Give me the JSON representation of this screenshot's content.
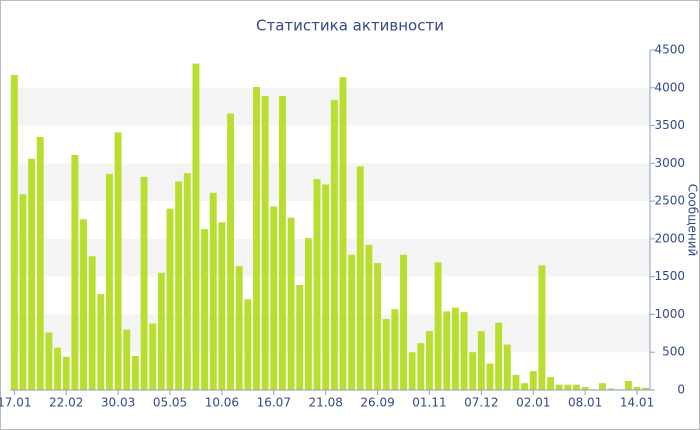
{
  "chart_data": {
    "type": "bar",
    "title": "Статистика активности",
    "y_label": "Сообщений",
    "categories": [
      "17.01",
      null,
      null,
      null,
      null,
      null,
      "22.02",
      null,
      null,
      null,
      null,
      null,
      "30.03",
      null,
      null,
      null,
      null,
      null,
      "05.05",
      null,
      null,
      null,
      null,
      null,
      "10.06",
      null,
      null,
      null,
      null,
      null,
      "16.07",
      null,
      null,
      null,
      null,
      null,
      "21.08",
      null,
      null,
      null,
      null,
      null,
      "26.09",
      null,
      null,
      null,
      null,
      null,
      "01.11",
      null,
      null,
      null,
      null,
      null,
      "07.12",
      null,
      null,
      null,
      null,
      null,
      "02.01",
      null,
      null,
      null,
      null,
      null,
      "08.01",
      null,
      null,
      null,
      null,
      null,
      "14.01",
      null
    ],
    "values": [
      4170,
      2590,
      3060,
      3350,
      760,
      560,
      440,
      3110,
      2260,
      1770,
      1270,
      2860,
      3410,
      800,
      450,
      2820,
      880,
      1550,
      2400,
      2760,
      2870,
      4320,
      2130,
      2610,
      2220,
      3660,
      1640,
      1200,
      4010,
      3890,
      2430,
      3890,
      2280,
      1390,
      2010,
      2790,
      2720,
      3840,
      4140,
      1790,
      2960,
      1920,
      1680,
      940,
      1070,
      1790,
      500,
      620,
      780,
      1690,
      1040,
      1090,
      1030,
      500,
      780,
      350,
      890,
      600,
      200,
      90,
      250,
      1650,
      170,
      70,
      70,
      70,
      40,
      10,
      90,
      20,
      10,
      120,
      40,
      30
    ],
    "color": "#b8de2f",
    "ylim": [
      0,
      4500
    ],
    "yticks": [
      0,
      500,
      1000,
      1500,
      2000,
      2500,
      3000,
      3500,
      4000,
      4500
    ],
    "grid": true
  }
}
